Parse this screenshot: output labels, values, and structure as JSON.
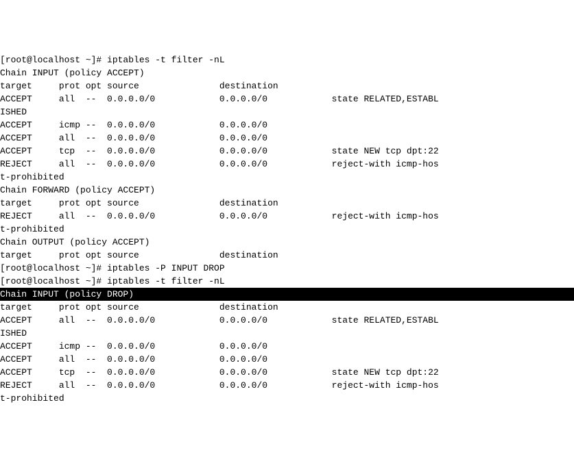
{
  "lines": [
    {
      "text": "[root@localhost ~]# iptables -t filter -nL",
      "hl": false
    },
    {
      "text": "Chain INPUT (policy ACCEPT)",
      "hl": false
    },
    {
      "text": "target     prot opt source               destination",
      "hl": false
    },
    {
      "text": "ACCEPT     all  --  0.0.0.0/0            0.0.0.0/0            state RELATED,ESTABL",
      "hl": false
    },
    {
      "text": "ISHED",
      "hl": false
    },
    {
      "text": "ACCEPT     icmp --  0.0.0.0/0            0.0.0.0/0",
      "hl": false
    },
    {
      "text": "ACCEPT     all  --  0.0.0.0/0            0.0.0.0/0",
      "hl": false
    },
    {
      "text": "ACCEPT     tcp  --  0.0.0.0/0            0.0.0.0/0            state NEW tcp dpt:22",
      "hl": false
    },
    {
      "text": "REJECT     all  --  0.0.0.0/0            0.0.0.0/0            reject-with icmp-hos",
      "hl": false
    },
    {
      "text": "t-prohibited",
      "hl": false
    },
    {
      "text": "",
      "hl": false
    },
    {
      "text": "Chain FORWARD (policy ACCEPT)",
      "hl": false
    },
    {
      "text": "target     prot opt source               destination",
      "hl": false
    },
    {
      "text": "REJECT     all  --  0.0.0.0/0            0.0.0.0/0            reject-with icmp-hos",
      "hl": false
    },
    {
      "text": "t-prohibited",
      "hl": false
    },
    {
      "text": "",
      "hl": false
    },
    {
      "text": "Chain OUTPUT (policy ACCEPT)",
      "hl": false
    },
    {
      "text": "target     prot opt source               destination",
      "hl": false
    },
    {
      "text": "[root@localhost ~]# iptables -P INPUT DROP",
      "hl": false
    },
    {
      "text": "[root@localhost ~]# iptables -t filter -nL",
      "hl": false
    },
    {
      "text": "Chain INPUT (policy DROP)",
      "hl": true
    },
    {
      "text": "target     prot opt source               destination",
      "hl": false
    },
    {
      "text": "ACCEPT     all  --  0.0.0.0/0            0.0.0.0/0            state RELATED,ESTABL",
      "hl": false
    },
    {
      "text": "ISHED",
      "hl": false
    },
    {
      "text": "ACCEPT     icmp --  0.0.0.0/0            0.0.0.0/0",
      "hl": false
    },
    {
      "text": "ACCEPT     all  --  0.0.0.0/0            0.0.0.0/0",
      "hl": false
    },
    {
      "text": "ACCEPT     tcp  --  0.0.0.0/0            0.0.0.0/0            state NEW tcp dpt:22",
      "hl": false
    },
    {
      "text": "REJECT     all  --  0.0.0.0/0            0.0.0.0/0            reject-with icmp-hos",
      "hl": false
    },
    {
      "text": "t-prohibited",
      "hl": false
    }
  ]
}
